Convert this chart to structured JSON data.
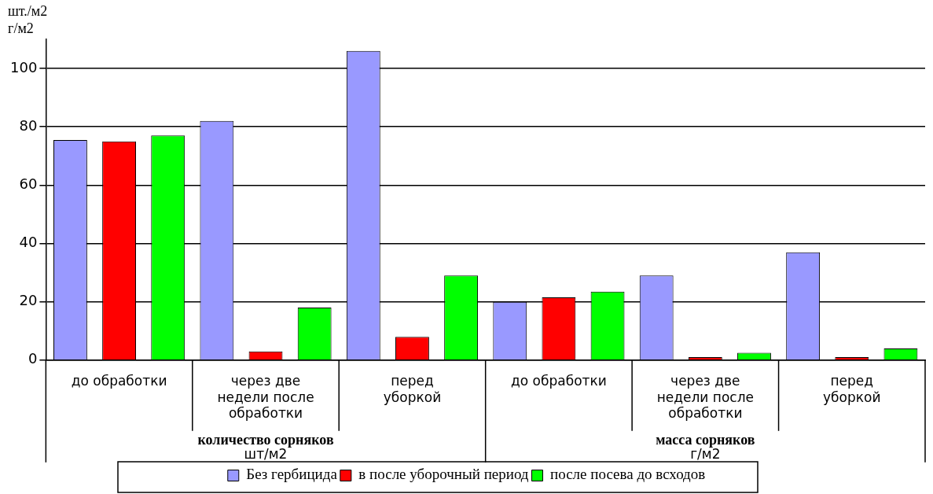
{
  "chart_data": {
    "type": "bar",
    "ylabel": "шт./м2\nг/м2",
    "categories": [
      "до обработки",
      "через две недели после обработки",
      "перед уборкой",
      "до обработки",
      "через две недели после обработки",
      "перед уборкой"
    ],
    "series": [
      {
        "name": "Без гербицида",
        "color": "#9999ff",
        "values": [
          75.5,
          82,
          106,
          20,
          29,
          37
        ]
      },
      {
        "name": "в после уборочный период",
        "color": "#ff0000",
        "values": [
          75,
          3,
          8,
          21.5,
          1,
          1
        ]
      },
      {
        "name": "после посева до всходов",
        "color": "#00ff00",
        "values": [
          77,
          18,
          29,
          23.5,
          2.5,
          4
        ]
      }
    ],
    "ylim": [
      0,
      110
    ],
    "yticks": [
      0,
      20,
      40,
      60,
      80,
      100
    ],
    "grid": "y",
    "legend": "bottom",
    "annotations": [
      "количество сорняков\nшт/м2",
      "масса сорняков\nг/м2"
    ]
  }
}
